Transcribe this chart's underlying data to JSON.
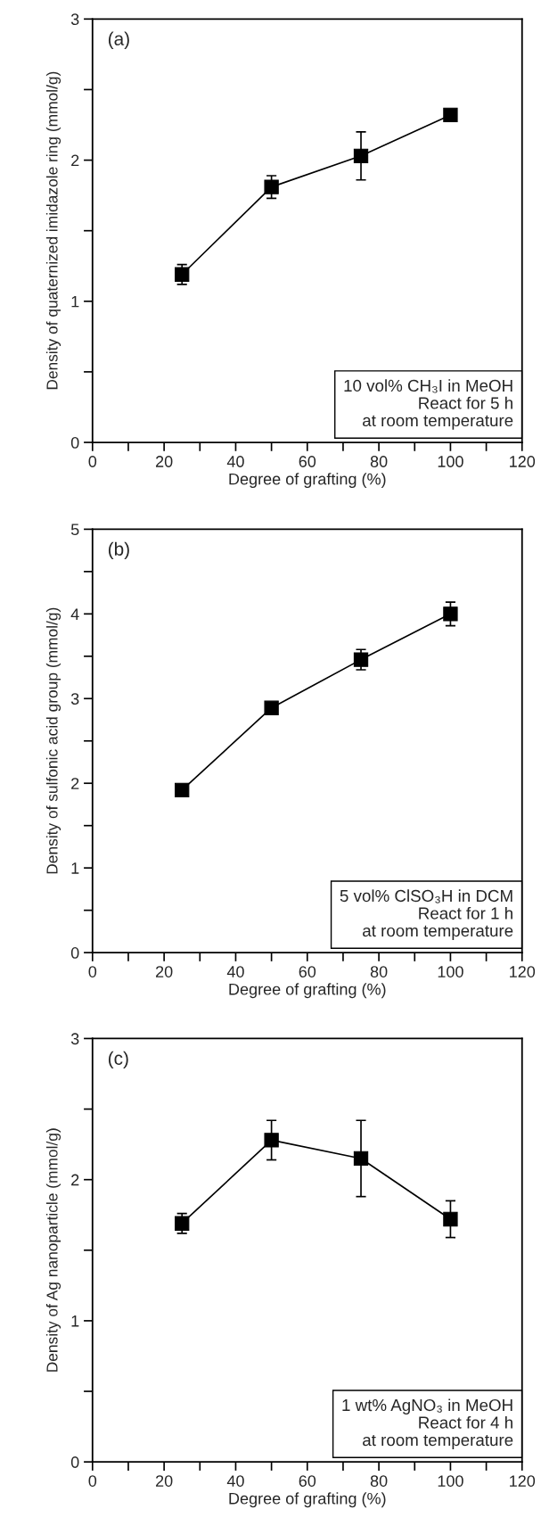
{
  "chart_data": [
    {
      "type": "line",
      "xlabel": "Degree of grafting (%)",
      "ylabel": "Density of quaternized imidazole ring (mmol/g)",
      "annotations": [
        "(a)",
        "10 vol% CH₃I in MeOH\nReact for 5 h\n   at room temperature"
      ],
      "x": [
        25,
        50,
        75,
        100
      ],
      "series": [
        {
          "color": "#000000",
          "values": [
            1.19,
            1.81,
            2.03,
            2.32
          ],
          "errors": [
            0.07,
            0.08,
            0.17,
            null
          ]
        }
      ],
      "marker": "square",
      "line_style": "solid",
      "xlim": [
        0,
        120
      ],
      "ylim": [
        0,
        3
      ],
      "xticks": [
        0,
        {
          "value": 10,
          "label": null
        },
        20,
        {
          "value": 30,
          "label": null
        },
        40,
        {
          "value": 50,
          "label": null
        },
        60,
        {
          "value": 70,
          "label": null
        },
        80,
        {
          "value": 90,
          "label": null
        },
        100,
        {
          "value": 110,
          "label": null
        },
        120
      ],
      "yticks": [
        0,
        {
          "value": 0.5,
          "label": null
        },
        1,
        {
          "value": 1.5,
          "label": null
        },
        2,
        {
          "value": 2.5,
          "label": null
        },
        3
      ]
    },
    {
      "type": "line",
      "xlabel": "Degree of grafting (%)",
      "ylabel": "Density of sulfonic acid group (mmol/g)",
      "annotations": [
        "(b)",
        "5 vol% ClSO₃H in DCM\nReact for 1 h\n   at room temperature"
      ],
      "x": [
        25,
        50,
        75,
        100
      ],
      "series": [
        {
          "color": "#000000",
          "values": [
            1.92,
            2.89,
            3.46,
            4.0
          ],
          "errors": [
            null,
            null,
            0.12,
            0.14
          ]
        }
      ],
      "marker": "square",
      "line_style": "solid",
      "xlim": [
        0,
        120
      ],
      "ylim": [
        0,
        5
      ],
      "xticks": [
        0,
        {
          "value": 10,
          "label": null
        },
        20,
        {
          "value": 30,
          "label": null
        },
        40,
        {
          "value": 50,
          "label": null
        },
        60,
        {
          "value": 70,
          "label": null
        },
        80,
        {
          "value": 90,
          "label": null
        },
        100,
        {
          "value": 110,
          "label": null
        },
        120
      ],
      "yticks": [
        0,
        {
          "value": 0.5,
          "label": null
        },
        1,
        {
          "value": 1.5,
          "label": null
        },
        2,
        {
          "value": 2.5,
          "label": null
        },
        3,
        {
          "value": 3.5,
          "label": null
        },
        4,
        {
          "value": 4.5,
          "label": null
        },
        5
      ]
    },
    {
      "type": "line",
      "xlabel": "Degree of grafting (%)",
      "ylabel": "Density of Ag nanoparticle (mmol/g)",
      "annotations": [
        "(c)",
        "1 wt% AgNO₃ in MeOH\nReact for 4 h\n   at room temperature"
      ],
      "x": [
        25,
        50,
        75,
        100
      ],
      "series": [
        {
          "color": "#000000",
          "values": [
            1.69,
            2.28,
            2.15,
            1.72
          ],
          "errors": [
            0.07,
            0.14,
            0.27,
            0.13
          ]
        }
      ],
      "marker": "square",
      "line_style": "solid",
      "xlim": [
        0,
        120
      ],
      "ylim": [
        0,
        3
      ],
      "xticks": [
        0,
        {
          "value": 10,
          "label": null
        },
        20,
        {
          "value": 30,
          "label": null
        },
        40,
        {
          "value": 50,
          "label": null
        },
        60,
        {
          "value": 70,
          "label": null
        },
        80,
        {
          "value": 90,
          "label": null
        },
        100,
        {
          "value": 110,
          "label": null
        },
        120
      ],
      "yticks": [
        0,
        {
          "value": 0.5,
          "label": null
        },
        1,
        {
          "value": 1.5,
          "label": null
        },
        2,
        {
          "value": 2.5,
          "label": null
        },
        3
      ]
    }
  ]
}
